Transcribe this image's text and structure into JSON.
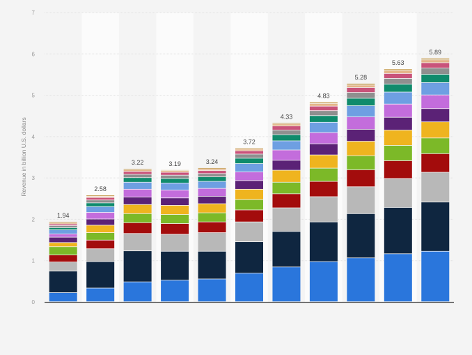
{
  "chart_data": {
    "type": "bar",
    "stacked": true,
    "title": "",
    "xlabel": "",
    "ylabel": "Revenue in billion U.S. dollars",
    "ylim": [
      0,
      7
    ],
    "yticks": [
      "0",
      "1",
      "2",
      "3",
      "4",
      "5",
      "6",
      "7"
    ],
    "grid": true,
    "legend": "none",
    "categories": [
      "",
      "",
      "",
      "",
      "",
      "",
      "",
      "",
      "",
      "",
      ""
    ],
    "totals": [
      "1.94",
      "2.58",
      "3.22",
      "3.19",
      "3.24",
      "3.72",
      "4.33",
      "4.83",
      "5.28",
      "5.63",
      "5.89"
    ],
    "series": [
      {
        "color": "#2a76dc",
        "values": [
          0.22,
          0.33,
          0.48,
          0.52,
          0.55,
          0.69,
          0.84,
          0.97,
          1.06,
          1.16,
          1.22
        ]
      },
      {
        "color": "#0f2640",
        "values": [
          0.52,
          0.64,
          0.75,
          0.7,
          0.67,
          0.76,
          0.86,
          0.96,
          1.07,
          1.12,
          1.19
        ]
      },
      {
        "color": "#b8b8b8",
        "values": [
          0.22,
          0.31,
          0.42,
          0.41,
          0.45,
          0.48,
          0.57,
          0.61,
          0.65,
          0.7,
          0.72
        ]
      },
      {
        "color": "#a30c0c",
        "values": [
          0.17,
          0.21,
          0.26,
          0.26,
          0.26,
          0.29,
          0.34,
          0.37,
          0.41,
          0.43,
          0.45
        ]
      },
      {
        "color": "#7cb928",
        "values": [
          0.2,
          0.18,
          0.22,
          0.22,
          0.22,
          0.25,
          0.28,
          0.32,
          0.34,
          0.37,
          0.38
        ]
      },
      {
        "color": "#efb41f",
        "values": [
          0.1,
          0.18,
          0.22,
          0.22,
          0.22,
          0.25,
          0.29,
          0.32,
          0.35,
          0.37,
          0.39
        ]
      },
      {
        "color": "#5b2276",
        "values": [
          0.13,
          0.15,
          0.18,
          0.18,
          0.18,
          0.21,
          0.24,
          0.27,
          0.29,
          0.31,
          0.32
        ]
      },
      {
        "color": "#c36ddc",
        "values": [
          0.08,
          0.16,
          0.19,
          0.19,
          0.19,
          0.21,
          0.25,
          0.27,
          0.3,
          0.32,
          0.33
        ]
      },
      {
        "color": "#6e9fe2",
        "values": [
          0.1,
          0.14,
          0.17,
          0.17,
          0.17,
          0.2,
          0.22,
          0.25,
          0.27,
          0.29,
          0.3
        ]
      },
      {
        "color": "#0f8b6c",
        "values": [
          0.05,
          0.09,
          0.11,
          0.11,
          0.11,
          0.13,
          0.15,
          0.16,
          0.18,
          0.19,
          0.2
        ]
      },
      {
        "color": "#8f8f8f",
        "values": [
          0.05,
          0.07,
          0.08,
          0.08,
          0.08,
          0.1,
          0.11,
          0.12,
          0.14,
          0.14,
          0.15
        ]
      },
      {
        "color": "#c9537a",
        "values": [
          0.04,
          0.06,
          0.07,
          0.07,
          0.07,
          0.08,
          0.1,
          0.11,
          0.12,
          0.12,
          0.13
        ]
      },
      {
        "color": "#e4b589",
        "values": [
          0.03,
          0.03,
          0.04,
          0.04,
          0.04,
          0.04,
          0.05,
          0.06,
          0.06,
          0.07,
          0.07
        ]
      },
      {
        "color": "#c9a25c",
        "values": [
          0.03,
          0.03,
          0.03,
          0.02,
          0.03,
          0.03,
          0.03,
          0.04,
          0.04,
          0.04,
          0.04
        ]
      }
    ]
  }
}
